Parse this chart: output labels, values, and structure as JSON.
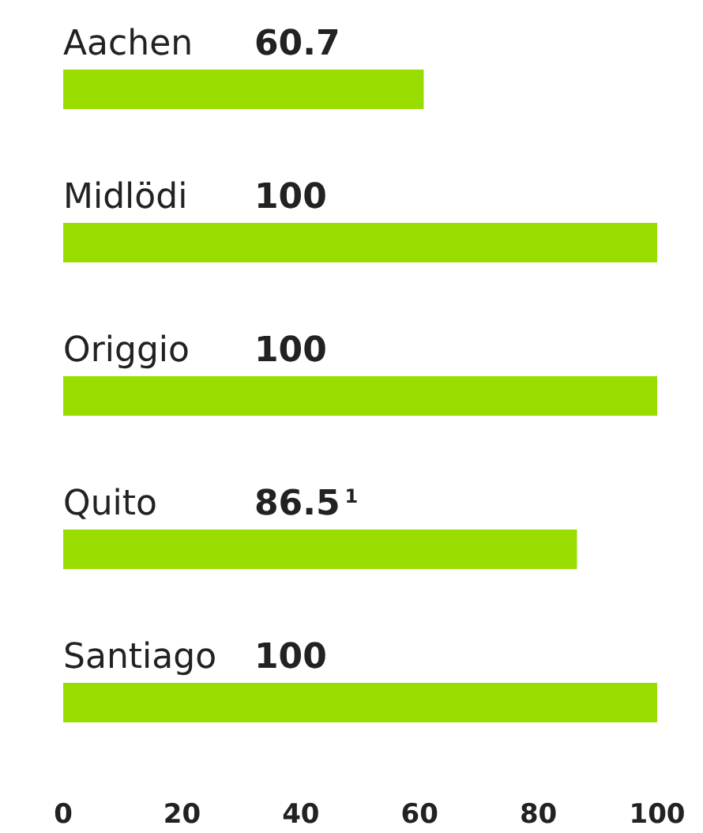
{
  "chart_data": {
    "type": "bar",
    "orientation": "horizontal",
    "categories": [
      "Aachen",
      "Midlödi",
      "Origgio",
      "Quito",
      "Santiago"
    ],
    "values": [
      60.7,
      100,
      100,
      86.5,
      100
    ],
    "value_labels": [
      "60.7",
      "100",
      "100",
      "86.5$^{1}$",
      "100"
    ],
    "color": "#99dd00",
    "xlim": [
      0,
      100
    ],
    "xticks": [
      0,
      20,
      40,
      60,
      80,
      100
    ],
    "grid": false
  }
}
